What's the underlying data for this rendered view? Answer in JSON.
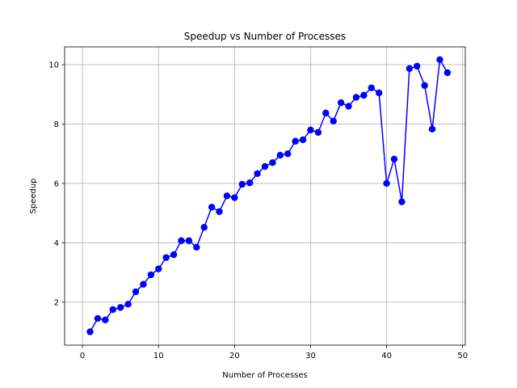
{
  "chart_data": {
    "type": "line",
    "title": "Speedup vs Number of Processes",
    "xlabel": "Number of Processes",
    "ylabel": "Speedup",
    "xlim": [
      -2.35,
      50.35
    ],
    "ylim": [
      0.55,
      10.6
    ],
    "xticks": [
      0,
      10,
      20,
      30,
      40,
      50
    ],
    "yticks": [
      2,
      4,
      6,
      8,
      10
    ],
    "grid": true,
    "series": [
      {
        "color": "#0000ff",
        "marker": "circle",
        "x": [
          1,
          2,
          3,
          4,
          5,
          6,
          7,
          8,
          9,
          10,
          11,
          12,
          13,
          14,
          15,
          16,
          17,
          18,
          19,
          20,
          21,
          22,
          23,
          24,
          25,
          26,
          27,
          28,
          29,
          30,
          31,
          32,
          33,
          34,
          35,
          36,
          37,
          38,
          39,
          40,
          41,
          42,
          43,
          44,
          45,
          46,
          47,
          48
        ],
        "y": [
          1.0,
          1.45,
          1.4,
          1.75,
          1.82,
          1.93,
          2.35,
          2.6,
          2.92,
          3.12,
          3.5,
          3.6,
          4.07,
          4.07,
          3.85,
          4.52,
          5.2,
          5.05,
          5.58,
          5.52,
          5.97,
          6.02,
          6.33,
          6.57,
          6.7,
          6.95,
          7.0,
          7.42,
          7.47,
          7.8,
          7.72,
          8.37,
          8.1,
          8.72,
          8.6,
          8.9,
          8.97,
          9.22,
          9.05,
          6.0,
          6.82,
          5.38,
          9.87,
          9.95,
          9.3,
          7.83,
          10.17,
          9.73
        ]
      }
    ]
  }
}
